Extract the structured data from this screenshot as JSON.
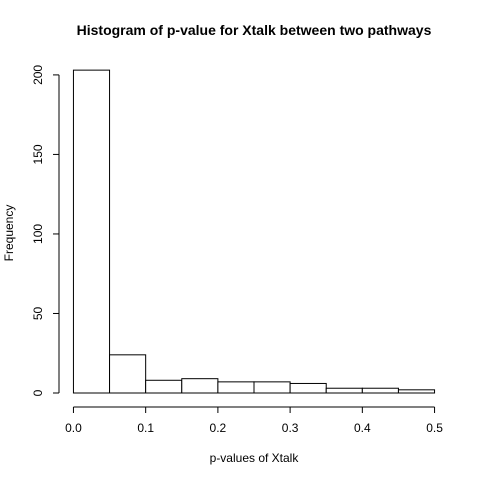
{
  "chart_data": {
    "type": "histogram",
    "title": "Histogram of p-value for Xtalk between two pathways",
    "x_label": "p-values of Xtalk",
    "y_label": "Frequency",
    "bins": [
      0,
      0.05,
      0.1,
      0.15,
      0.2,
      0.25,
      0.3,
      0.35,
      0.4,
      0.45,
      0.5
    ],
    "values": [
      203,
      24,
      8,
      9,
      7,
      7,
      6,
      3,
      3,
      2
    ],
    "color": "#ffffff",
    "xlim": [
      -0.02,
      0.52
    ],
    "ylim": [
      0,
      210
    ],
    "xticks": [
      {
        "value": 0,
        "label": "0.0"
      },
      {
        "value": 0.1,
        "label": "0.1"
      },
      {
        "value": 0.2,
        "label": "0.2"
      },
      {
        "value": 0.3,
        "label": "0.3"
      },
      {
        "value": 0.4,
        "label": "0.4"
      },
      {
        "value": 0.5,
        "label": "0.5"
      }
    ],
    "yticks": [
      0,
      50,
      100,
      150,
      200
    ]
  }
}
